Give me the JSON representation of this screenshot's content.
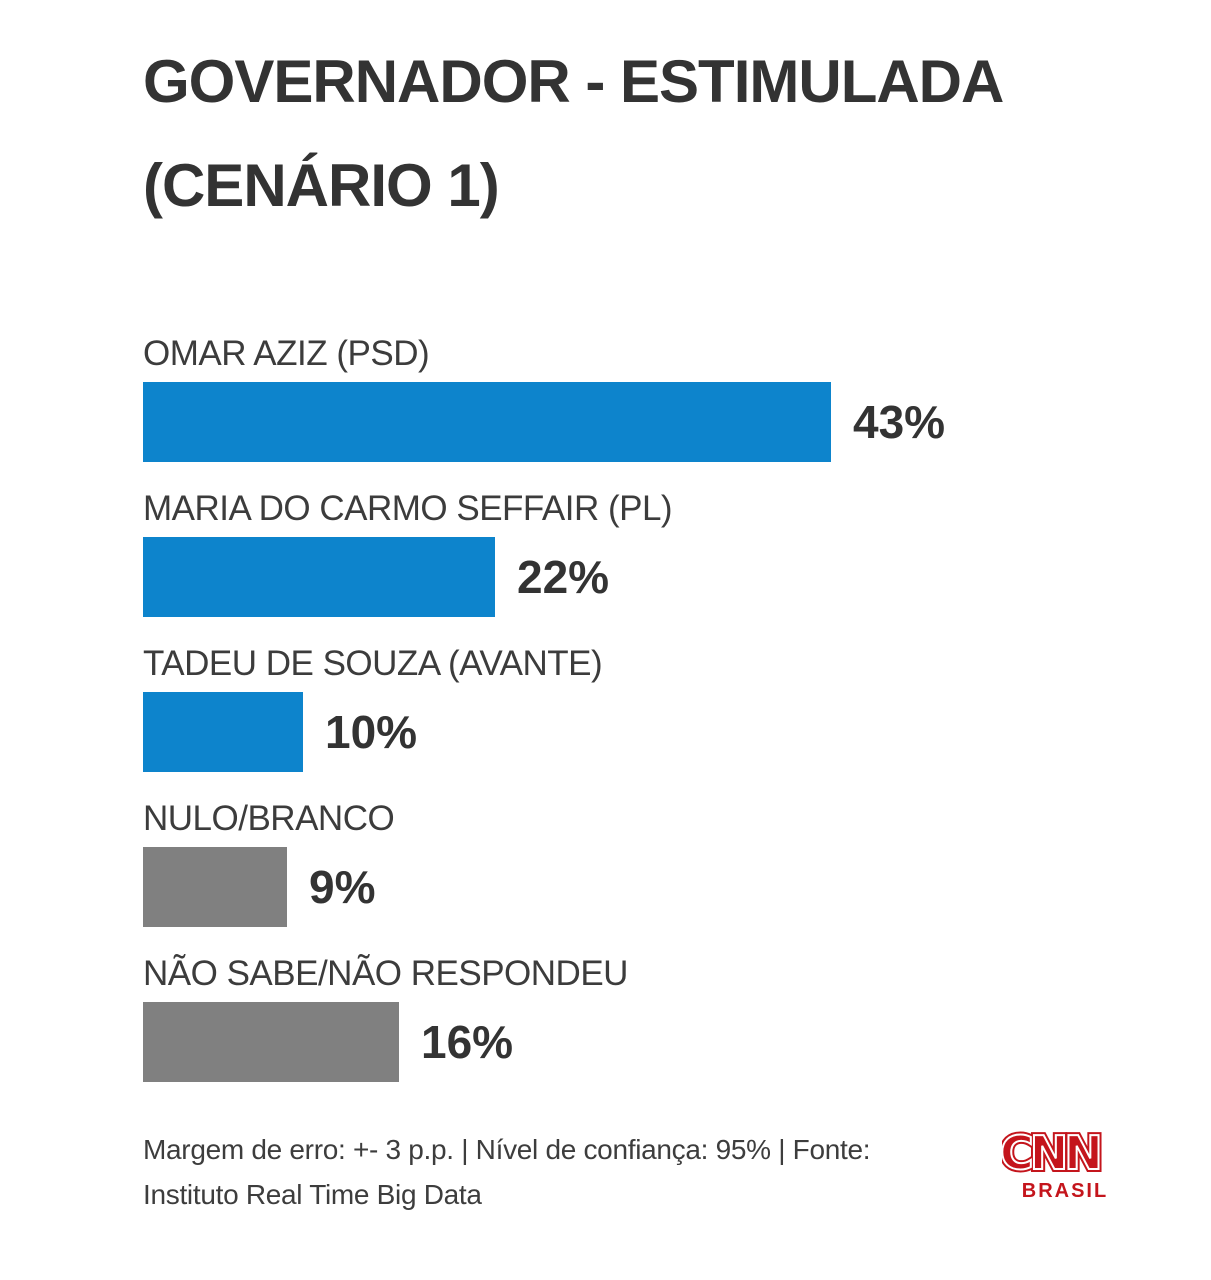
{
  "title": {
    "line1": "GOVERNADOR - ESTIMULADA",
    "line2": "(CENÁRIO 1)"
  },
  "chart_data": {
    "type": "bar",
    "orientation": "horizontal",
    "title": "GOVERNADOR - ESTIMULADA (CENÁRIO 1)",
    "categories": [
      "OMAR AZIZ (PSD)",
      "MARIA DO CARMO SEFFAIR (PL)",
      "TADEU DE SOUZA (AVANTE)",
      "NULO/BRANCO",
      "NÃO SABE/NÃO RESPONDEU"
    ],
    "values": [
      43,
      22,
      10,
      9,
      16
    ],
    "value_labels": [
      "43%",
      "22%",
      "10%",
      "9%",
      "16%"
    ],
    "bar_colors": [
      "#0d84cc",
      "#0d84cc",
      "#0d84cc",
      "#808080",
      "#808080"
    ],
    "unit": "%",
    "xlim": [
      0,
      100
    ],
    "grid": false,
    "legend": false
  },
  "footer": {
    "line1": "Margem de erro: +- 3 p.p. | Nível de confiança: 95% | Fonte:",
    "line2": "Instituto Real Time Big Data"
  },
  "logo": {
    "brand": "CNN",
    "sub": "BRASIL",
    "color": "#c4151c"
  },
  "colors": {
    "bar_blue": "#0d84cc",
    "bar_gray": "#808080",
    "title_text": "#333333",
    "label_text": "#3c3c3c",
    "footer_text": "#3d3d3d",
    "cnn_red": "#c4151c",
    "background": "#ffffff"
  }
}
